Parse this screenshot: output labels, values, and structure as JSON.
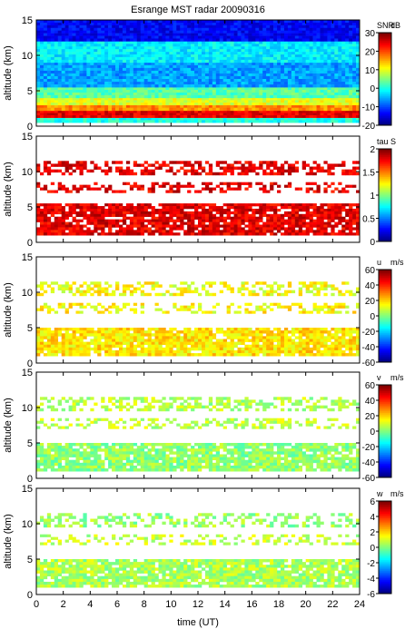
{
  "chart_data": {
    "type": "heatmap",
    "title": "Esrange MST radar 20090316",
    "xlabel": "time (UT)",
    "xlim": [
      0,
      24
    ],
    "x_ticks": [
      "0",
      "2",
      "4",
      "6",
      "8",
      "10",
      "12",
      "14",
      "16",
      "18",
      "20",
      "22",
      "24"
    ],
    "panels": [
      {
        "ylabel": "altitude (km)",
        "ylim": [
          0,
          15
        ],
        "y_ticks": [
          "0",
          "5",
          "10",
          "15"
        ],
        "colorbar": {
          "name": "SNR",
          "unit": "dB",
          "range": [
            -20,
            30
          ],
          "ticks": [
            "-20",
            "-10",
            "0",
            "10",
            "20",
            "30"
          ],
          "colormap": "jet"
        },
        "layers": [
          {
            "alt": [
              0.5,
              1.2
            ],
            "value": 0,
            "coverage": 1.0
          },
          {
            "alt": [
              1.2,
              2.2
            ],
            "value": 25,
            "coverage": 1.0
          },
          {
            "alt": [
              2.2,
              3.0
            ],
            "value": 17,
            "coverage": 1.0
          },
          {
            "alt": [
              3.0,
              4.0
            ],
            "value": 10,
            "coverage": 1.0
          },
          {
            "alt": [
              4.0,
              5.5
            ],
            "value": 3,
            "coverage": 1.0
          },
          {
            "alt": [
              5.5,
              9.0
            ],
            "value": -6,
            "coverage": 1.0
          },
          {
            "alt": [
              9.0,
              12.0
            ],
            "value": -2,
            "coverage": 1.0
          },
          {
            "alt": [
              12.0,
              15.0
            ],
            "value": -14,
            "coverage": 1.0
          }
        ]
      },
      {
        "ylabel": "altitude (km)",
        "ylim": [
          0,
          15
        ],
        "y_ticks": [
          "0",
          "5",
          "10",
          "15"
        ],
        "colorbar": {
          "name": "tau",
          "unit": "S",
          "range": [
            0,
            2
          ],
          "ticks": [
            "0",
            "0.5",
            "1",
            "1.5",
            "2"
          ],
          "colormap": "jet"
        },
        "layers": [
          {
            "alt": [
              1.0,
              5.5
            ],
            "value": 1.8,
            "coverage": 0.85
          },
          {
            "alt": [
              7.0,
              8.5
            ],
            "value": 1.8,
            "coverage": 0.45
          },
          {
            "alt": [
              9.5,
              11.5
            ],
            "value": 1.8,
            "coverage": 0.5
          }
        ]
      },
      {
        "ylabel": "altitude (km)",
        "ylim": [
          0,
          15
        ],
        "y_ticks": [
          "0",
          "5",
          "10",
          "15"
        ],
        "colorbar": {
          "name": "u",
          "unit": "m/s",
          "range": [
            -60,
            60
          ],
          "ticks": [
            "-60",
            "-40",
            "-20",
            "0",
            "20",
            "40",
            "60"
          ],
          "colormap": "jet"
        },
        "layers": [
          {
            "alt": [
              1.0,
              5.0
            ],
            "value": 18,
            "coverage": 0.9
          },
          {
            "alt": [
              7.0,
              8.5
            ],
            "value": 15,
            "coverage": 0.4
          },
          {
            "alt": [
              9.5,
              11.5
            ],
            "value": 14,
            "coverage": 0.5
          }
        ]
      },
      {
        "ylabel": "altitude (km)",
        "ylim": [
          0,
          15
        ],
        "y_ticks": [
          "0",
          "5",
          "10",
          "15"
        ],
        "colorbar": {
          "name": "v",
          "unit": "m/s",
          "range": [
            -60,
            60
          ],
          "ticks": [
            "-60",
            "-40",
            "-20",
            "0",
            "20",
            "40",
            "60"
          ],
          "colormap": "jet"
        },
        "layers": [
          {
            "alt": [
              1.0,
              5.0
            ],
            "value": 2,
            "coverage": 0.85
          },
          {
            "alt": [
              7.0,
              8.5
            ],
            "value": 8,
            "coverage": 0.4
          },
          {
            "alt": [
              9.5,
              11.5
            ],
            "value": 6,
            "coverage": 0.45
          }
        ]
      },
      {
        "ylabel": "altitude (km)",
        "ylim": [
          0,
          15
        ],
        "y_ticks": [
          "0",
          "5",
          "10",
          "15"
        ],
        "colorbar": {
          "name": "w",
          "unit": "m/s",
          "range": [
            -6,
            6
          ],
          "ticks": [
            "-6",
            "-4",
            "-2",
            "0",
            "2",
            "4",
            "6"
          ],
          "colormap": "jet"
        },
        "layers": [
          {
            "alt": [
              1.0,
              5.0
            ],
            "value": 0.5,
            "coverage": 0.85
          },
          {
            "alt": [
              7.0,
              8.5
            ],
            "value": 0.8,
            "coverage": 0.4
          },
          {
            "alt": [
              9.5,
              11.5
            ],
            "value": 0.3,
            "coverage": 0.45
          }
        ]
      }
    ]
  }
}
